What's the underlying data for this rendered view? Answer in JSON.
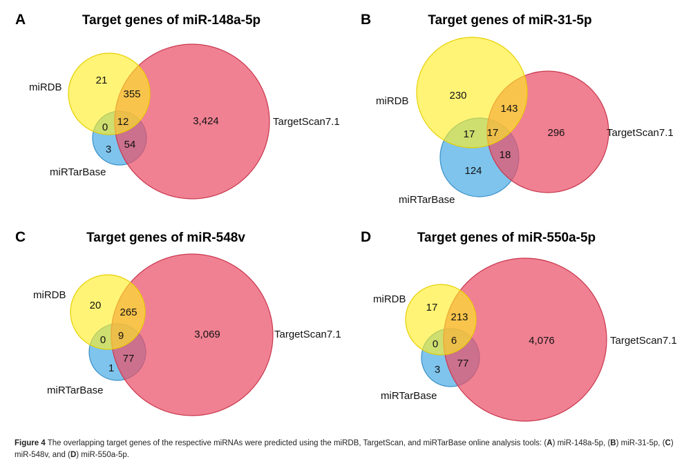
{
  "colors": {
    "miRDB": "#ffee22",
    "TargetScan7.1": "#ea5168",
    "miRTarBase": "#5ab4e8",
    "miRDB_stroke": "#e6cf00",
    "TargetScan7.1_stroke": "#c8364d",
    "miRTarBase_stroke": "#3a8fc6"
  },
  "chart_data": [
    {
      "type": "venn",
      "panel": "A",
      "title": "Target genes of miR-148a-5p",
      "sets": [
        "miRDB",
        "TargetScan7.1",
        "miRTarBase"
      ],
      "regions": {
        "miRDB_only": "21",
        "TargetScan_only": "3,424",
        "miRTarBase_only": "3",
        "miRDB_TargetScan": "355",
        "miRDB_miRTarBase": "0",
        "TargetScan_miRTarBase": "54",
        "all_three": "12"
      }
    },
    {
      "type": "venn",
      "panel": "B",
      "title": "Target genes of miR-31-5p",
      "sets": [
        "miRDB",
        "TargetScan7.1",
        "miRTarBase"
      ],
      "regions": {
        "miRDB_only": "230",
        "TargetScan_only": "296",
        "miRTarBase_only": "124",
        "miRDB_TargetScan": "143",
        "miRDB_miRTarBase": "17",
        "TargetScan_miRTarBase": "18",
        "all_three": "17"
      }
    },
    {
      "type": "venn",
      "panel": "C",
      "title": "Target genes of miR-548v",
      "sets": [
        "miRDB",
        "TargetScan7.1",
        "miRTarBase"
      ],
      "regions": {
        "miRDB_only": "20",
        "TargetScan_only": "3,069",
        "miRTarBase_only": "1",
        "miRDB_TargetScan": "265",
        "miRDB_miRTarBase": "0",
        "TargetScan_miRTarBase": "77",
        "all_three": "9"
      }
    },
    {
      "type": "venn",
      "panel": "D",
      "title": "Target genes of miR-550a-5p",
      "sets": [
        "miRDB",
        "TargetScan7.1",
        "miRTarBase"
      ],
      "regions": {
        "miRDB_only": "17",
        "TargetScan_only": "4,076",
        "miRTarBase_only": "3",
        "miRDB_TargetScan": "213",
        "miRDB_miRTarBase": "0",
        "TargetScan_miRTarBase": "77",
        "all_three": "6"
      }
    }
  ],
  "caption": {
    "figure_label": "Figure 4",
    "text_1": " The overlapping target genes of the respective miRNAs were predicted using the miRDB, TargetScan, and miRTarBase online analysis tools: (",
    "a": "A",
    "text_2": ") miR-148a-5p, (",
    "b": "B",
    "text_3": ") miR-31-5p, (",
    "c": "C",
    "text_4": ") miR-548v, and (",
    "d": "D",
    "text_5": ") miR-550a-5p."
  }
}
